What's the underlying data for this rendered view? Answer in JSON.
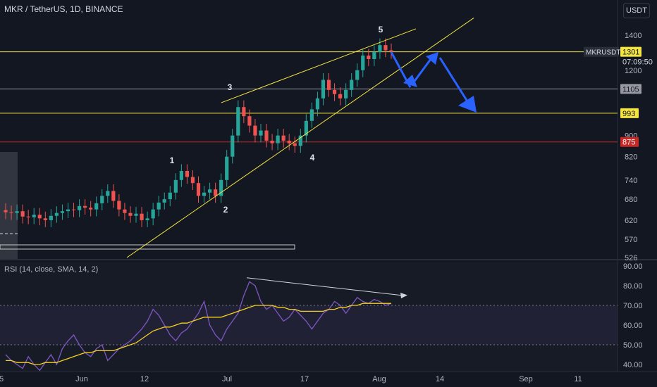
{
  "header": {
    "title": "MKR / TetherUS, 1D, BINANCE",
    "currency_button": "USDT"
  },
  "rsi": {
    "title": "RSI (14, close, SMA, 14, 2)"
  },
  "colors": {
    "bg": "#131722",
    "up": "#26a69a",
    "down": "#ef5350",
    "yellow": "#f4e542",
    "grey": "#9598a1",
    "red": "#c62828",
    "arrow": "#2962ff",
    "rsi": "#7e57c2",
    "rsi_ma": "#f5d020"
  },
  "price_axis": {
    "ticks": [
      "1400",
      "1200",
      "900",
      "820",
      "740",
      "680",
      "620",
      "570",
      "526"
    ]
  },
  "rsi_axis": {
    "ticks": [
      "90.00",
      "80.00",
      "70.00",
      "60.00",
      "50.00",
      "40.00"
    ]
  },
  "x_axis": {
    "ticks": [
      "5",
      "Jun",
      "12",
      "Jul",
      "17",
      "Aug",
      "14",
      "Sep",
      "11"
    ]
  },
  "price_labels": [
    {
      "text": "1301",
      "kind": "yellow-current"
    },
    {
      "text": "07:09:50",
      "kind": "countdown"
    },
    {
      "text": "1105",
      "kind": "grey"
    },
    {
      "text": "993",
      "kind": "yellow"
    },
    {
      "text": "875",
      "kind": "red"
    }
  ],
  "symbol_label": "MKRUSDT",
  "wave_labels": [
    "1",
    "2",
    "3",
    "4",
    "5"
  ],
  "chart_data": [
    {
      "type": "candlestick",
      "title": "MKR / TetherUS, 1D, BINANCE",
      "y_scale": "log",
      "horizontal_levels": [
        1301,
        1105,
        993,
        875
      ],
      "close_series": [
        642,
        640,
        645,
        630,
        628,
        635,
        625,
        620,
        632,
        640,
        645,
        650,
        648,
        660,
        655,
        650,
        668,
        690,
        705,
        675,
        650,
        640,
        632,
        638,
        620,
        625,
        650,
        670,
        680,
        700,
        740,
        770,
        750,
        730,
        690,
        700,
        710,
        690,
        740,
        820,
        900,
        1020,
        980,
        940,
        900,
        920,
        880,
        870,
        900,
        880,
        870,
        860,
        900,
        960,
        1010,
        1060,
        1150,
        1100,
        1080,
        1060,
        1100,
        1150,
        1200,
        1280,
        1260,
        1300,
        1340,
        1310,
        1301
      ],
      "wave_points": {
        "1": 770,
        "2": 690,
        "3": 1050,
        "4": 860,
        "5": 1380
      }
    },
    {
      "type": "line",
      "title": "RSI (14, close, SMA, 14, 2)",
      "ylim": [
        40,
        90
      ],
      "series": [
        {
          "values": [
            45,
            42,
            40,
            38,
            44,
            40,
            37,
            41,
            45,
            40,
            48,
            52,
            55,
            50,
            46,
            44,
            48,
            50,
            42,
            45,
            48,
            50,
            52,
            55,
            58,
            62,
            68,
            65,
            60,
            55,
            52,
            56,
            58,
            62,
            66,
            72,
            60,
            55,
            52,
            58,
            62,
            66,
            75,
            82,
            80,
            72,
            68,
            70,
            66,
            62,
            64,
            68,
            65,
            62,
            58,
            62,
            66,
            68,
            72,
            70,
            66,
            70,
            74,
            72,
            71,
            73,
            72,
            70,
            71
          ]
        },
        {
          "values": [
            42,
            42,
            41,
            41,
            41,
            40,
            40,
            41,
            41,
            41,
            42,
            43,
            44,
            45,
            46,
            46,
            47,
            47,
            47,
            47,
            48,
            49,
            50,
            51,
            53,
            55,
            57,
            58,
            59,
            59,
            60,
            61,
            61,
            62,
            63,
            64,
            64,
            64,
            64,
            65,
            66,
            67,
            68,
            69,
            70,
            70,
            70,
            70,
            69,
            69,
            68,
            68,
            67,
            67,
            67,
            67,
            67,
            68,
            68,
            69,
            69,
            70,
            70,
            71,
            71,
            71,
            71,
            71,
            71
          ]
        }
      ],
      "reference_lines": [
        70,
        50
      ]
    }
  ]
}
